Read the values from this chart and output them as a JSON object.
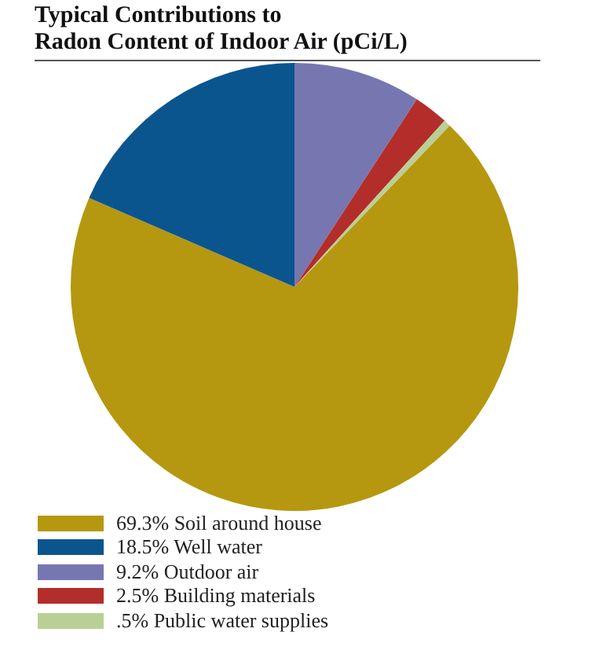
{
  "chart_data": {
    "type": "pie",
    "title": "Typical Contributions to\nRadon Content of Indoor Air (pCi/L)",
    "categories": [
      "69.3% Soil around house",
      "18.5% Well water",
      "9.2% Outdoor air",
      "2.5% Building materials",
      ".5% Public water supplies"
    ],
    "values": [
      69.3,
      18.5,
      9.2,
      2.5,
      0.5
    ],
    "colors": [
      "#b5980f",
      "#0b558f",
      "#7677b1",
      "#b32e2a",
      "#b9d095"
    ],
    "legend": "bottom left"
  }
}
